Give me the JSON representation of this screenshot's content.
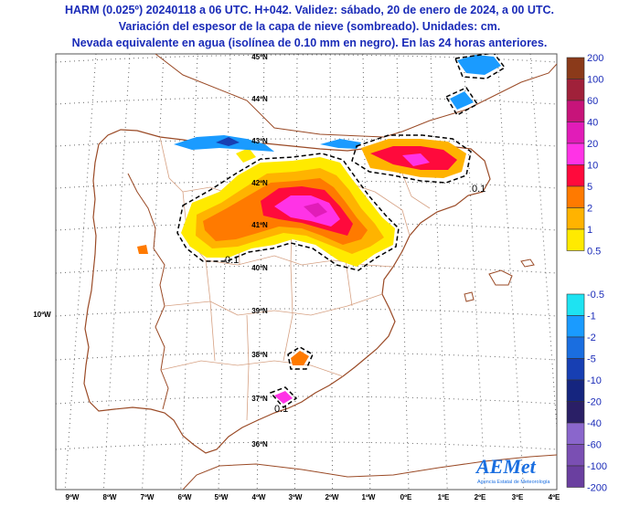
{
  "title": {
    "line1": "HARM (0.025º) 20240118 a 06 UTC. H+042. Validez: sábado, 20 de enero de 2024, a 00 UTC.",
    "line2": "Variación del espesor de la capa de nieve (sombreado). Unidades: cm.",
    "line3": "Nevada equivalente en agua (isolínea de 0.10 mm en negro). En las 24 horas anteriores."
  },
  "lat_labels": [
    "45ºN",
    "44ºN",
    "43ºN",
    "42ºN",
    "41ºN",
    "40ºN",
    "39ºN",
    "38ºN",
    "37ºN",
    "36ºN"
  ],
  "lon_labels": [
    "9ºW",
    "8ºW",
    "7ºW",
    "6ºW",
    "5ºW",
    "4ºW",
    "3ºW",
    "2ºW",
    "1ºW",
    "0ºE",
    "1ºE",
    "2ºE",
    "3ºE",
    "4ºE"
  ],
  "side_lon_label": "10ºW",
  "contour_labels": [
    "0.1",
    "0.1",
    "0.1"
  ],
  "positive_scale": [
    {
      "label": "200",
      "color": "#8b3a1a"
    },
    {
      "label": "100",
      "color": "#a0213a"
    },
    {
      "label": "60",
      "color": "#c7147a"
    },
    {
      "label": "40",
      "color": "#e11cb8"
    },
    {
      "label": "20",
      "color": "#ff33e6"
    },
    {
      "label": "10",
      "color": "#ff0a3c"
    },
    {
      "label": "5",
      "color": "#ff7a00"
    },
    {
      "label": "2",
      "color": "#ffb300"
    },
    {
      "label": "1",
      "color": "#ffea00"
    },
    {
      "label": "0.5",
      "color": null
    }
  ],
  "negative_scale": [
    {
      "label": "-0.5",
      "color": "#1ee3f2"
    },
    {
      "label": "-1",
      "color": "#1a9bff"
    },
    {
      "label": "-2",
      "color": "#1a6ee0"
    },
    {
      "label": "-5",
      "color": "#173fb3"
    },
    {
      "label": "-10",
      "color": "#15257f"
    },
    {
      "label": "-20",
      "color": "#2a1f66"
    },
    {
      "label": "-40",
      "color": "#8a66cc"
    },
    {
      "label": "-60",
      "color": "#7a4fb3"
    },
    {
      "label": "-100",
      "color": "#6a3fa0"
    },
    {
      "label": "-200",
      "color": null
    }
  ],
  "logo": {
    "text": "AEMet",
    "subtitle": "Agencia Estatal de Meteorología"
  }
}
